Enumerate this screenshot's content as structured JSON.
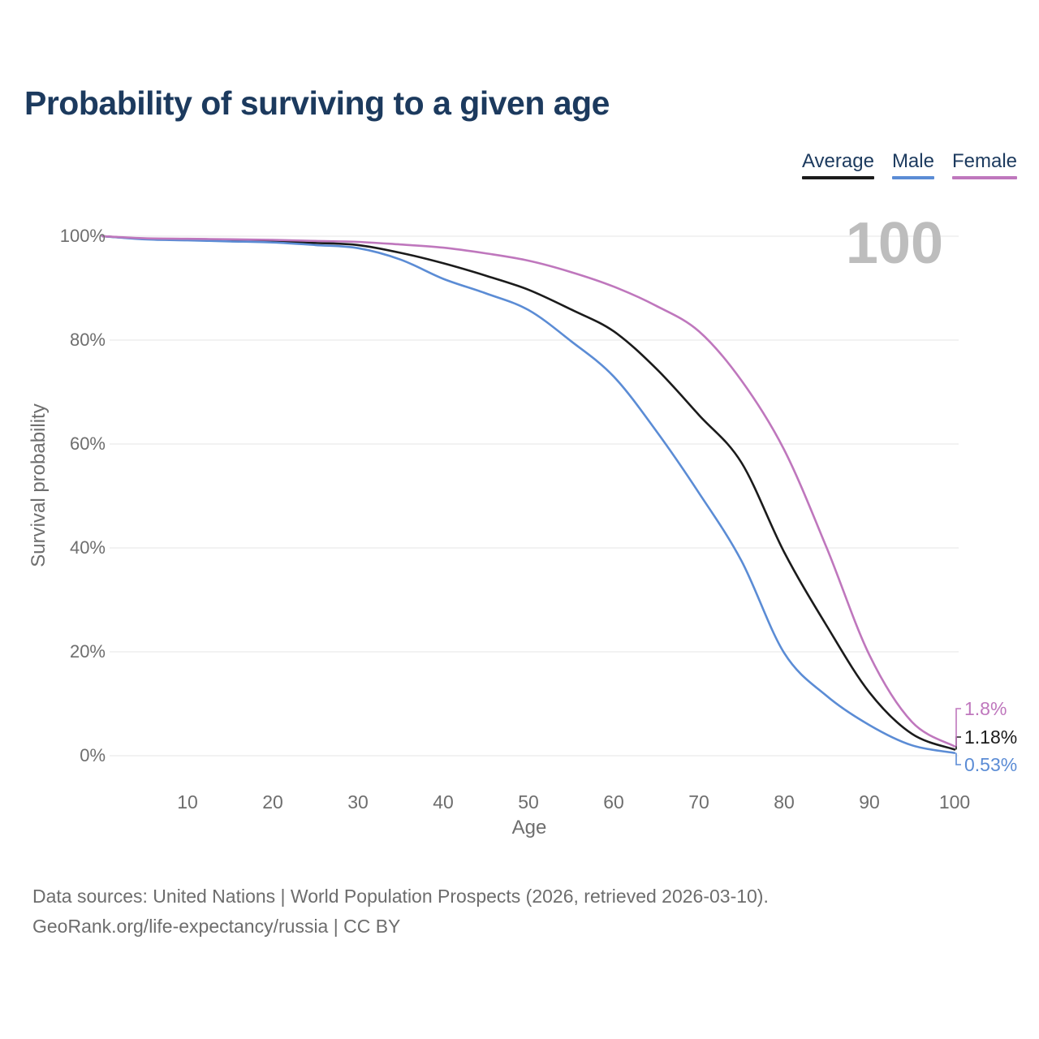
{
  "header": {
    "title": "Probability of surviving to a given age"
  },
  "legend": {
    "position": "top-right",
    "items": [
      {
        "label": "Average",
        "color": "#1b1b1b"
      },
      {
        "label": "Male",
        "color": "#5b8cd5"
      },
      {
        "label": "Female",
        "color": "#bf77bd"
      }
    ]
  },
  "chart_data": {
    "type": "line",
    "title": "Probability of surviving to a given age",
    "xlabel": "Age",
    "ylabel": "Survival probability",
    "xlim": [
      0,
      100
    ],
    "ylim": [
      0,
      100
    ],
    "grid": "horizontal-only",
    "legend_position": "top-right",
    "watermark": "100",
    "x_ticks": [
      "10",
      "20",
      "30",
      "40",
      "50",
      "60",
      "70",
      "80",
      "90",
      "100"
    ],
    "x_tick_values": [
      10,
      20,
      30,
      40,
      50,
      60,
      70,
      80,
      90,
      100
    ],
    "y_ticks": [
      "0%",
      "20%",
      "40%",
      "60%",
      "80%",
      "100%"
    ],
    "y_tick_values": [
      0,
      20,
      40,
      60,
      80,
      100
    ],
    "x": [
      0,
      5,
      10,
      15,
      20,
      25,
      30,
      35,
      40,
      45,
      50,
      55,
      60,
      65,
      70,
      75,
      80,
      85,
      90,
      95,
      100
    ],
    "series": [
      {
        "name": "Average",
        "color": "#1b1b1b",
        "end_label": "1.18%",
        "values": [
          100,
          99.5,
          99.3,
          99.2,
          99.0,
          98.7,
          98.3,
          96.8,
          94.8,
          92.4,
          89.7,
          85.9,
          81.7,
          74.5,
          65.6,
          56.4,
          39.2,
          25.0,
          12.2,
          4.2,
          1.18
        ]
      },
      {
        "name": "Male",
        "color": "#5b8cd5",
        "end_label": "0.53%",
        "values": [
          100,
          99.4,
          99.2,
          99.0,
          98.8,
          98.3,
          97.7,
          95.5,
          91.8,
          89.0,
          85.8,
          79.8,
          73.0,
          62.5,
          50.6,
          37.5,
          19.8,
          11.5,
          5.9,
          2.0,
          0.53
        ]
      },
      {
        "name": "Female",
        "color": "#bf77bd",
        "end_label": "1.8%",
        "values": [
          100,
          99.6,
          99.5,
          99.4,
          99.3,
          99.1,
          98.9,
          98.4,
          97.8,
          96.7,
          95.3,
          93.1,
          90.3,
          86.6,
          81.7,
          72.2,
          58.9,
          40.0,
          19.4,
          6.5,
          1.8
        ]
      }
    ]
  },
  "colors": {
    "title_text": "#1c3a5e",
    "legend_text": "#1c3a5e",
    "axis_text": "#6e6e6e",
    "grid_line": "#e9e9e9",
    "watermark_text": "#bdbdbd",
    "footer_text": "#6d6d6d"
  },
  "footer": {
    "line1": "Data sources: United Nations | World Population Prospects (2026, retrieved 2026-03-10).",
    "line2": "GeoRank.org/life-expectancy/russia | CC BY"
  }
}
